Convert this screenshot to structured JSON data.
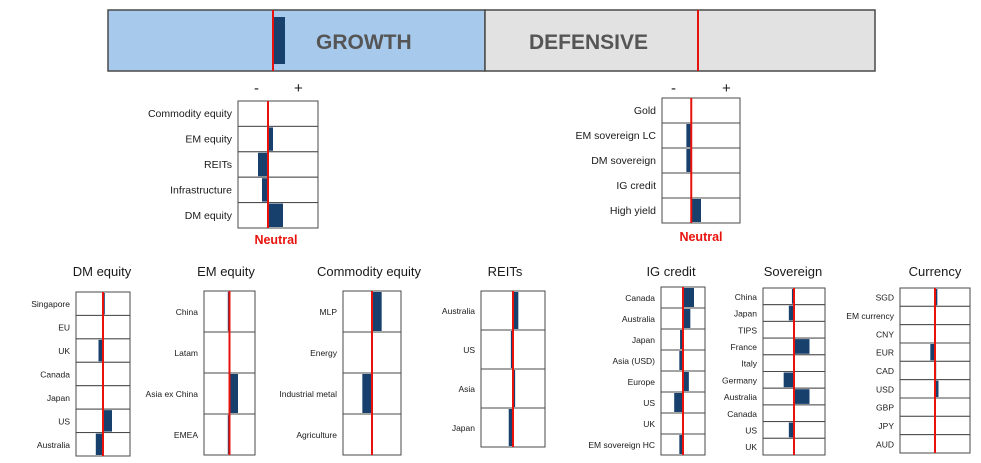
{
  "colors": {
    "growth_fill": "#a7c9ec",
    "defensive_fill": "#e2e2e2",
    "bar": "#17406d",
    "neutral_line": "#e8120c",
    "border": "#4a4a4a"
  },
  "banner": {
    "growth_label": "GROWTH",
    "defensive_label": "DEFENSIVE",
    "growth_tilt": 0.5,
    "defensive_tilt": 0
  },
  "signs": {
    "minus": "-",
    "plus": "+"
  },
  "neutral_label": "Neutral",
  "chart_data": [
    {
      "type": "bar",
      "id": "growth-assets",
      "orientation": "horizontal",
      "title": "",
      "categories": [
        "Commodity equity",
        "EM equity",
        "REITs",
        "Infrastructure",
        "DM equity"
      ],
      "values": [
        0,
        0.25,
        -0.5,
        -0.3,
        0.75
      ],
      "xlim": [
        -1.5,
        2.5
      ]
    },
    {
      "type": "bar",
      "id": "defensive-assets",
      "orientation": "horizontal",
      "title": "",
      "categories": [
        "Gold",
        "EM sovereign LC",
        "DM sovereign",
        "IG credit",
        "High yield"
      ],
      "values": [
        0,
        -0.25,
        -0.25,
        0,
        0.5
      ],
      "xlim": [
        -1.5,
        2.5
      ]
    },
    {
      "type": "bar",
      "id": "dm-equity",
      "orientation": "horizontal",
      "title": "DM equity",
      "categories": [
        "Singapore",
        "EU",
        "UK",
        "Canada",
        "Japan",
        "US",
        "Australia"
      ],
      "values": [
        0.1,
        0,
        -0.25,
        0,
        0,
        0.5,
        -0.4
      ],
      "xlim": [
        -1.5,
        1.5
      ]
    },
    {
      "type": "bar",
      "id": "em-equity",
      "orientation": "horizontal",
      "title": "EM equity",
      "categories": [
        "China",
        "Latam",
        "Asia ex China",
        "EMEA"
      ],
      "values": [
        -0.1,
        0,
        0.5,
        -0.1
      ],
      "xlim": [
        -1.5,
        1.5
      ]
    },
    {
      "type": "bar",
      "id": "commodity-equity",
      "orientation": "horizontal",
      "title": "Commodity equity",
      "categories": [
        "MLP",
        "Energy",
        "Industrial metal",
        "Agriculture"
      ],
      "values": [
        0.5,
        0,
        -0.5,
        0
      ],
      "xlim": [
        -1.5,
        1.5
      ]
    },
    {
      "type": "bar",
      "id": "reits",
      "orientation": "horizontal",
      "title": "REITs",
      "categories": [
        "Australia",
        "US",
        "Asia",
        "Japan"
      ],
      "values": [
        0.25,
        -0.1,
        0.1,
        -0.2
      ],
      "xlim": [
        -1.5,
        1.5
      ]
    },
    {
      "type": "bar",
      "id": "ig-credit",
      "orientation": "horizontal",
      "title": "IG credit",
      "categories": [
        "Canada",
        "Australia",
        "Japan",
        "Asia (USD)",
        "Europe",
        "US",
        "UK",
        "EM sovereign HC"
      ],
      "values": [
        0.75,
        0.5,
        -0.2,
        -0.25,
        0.4,
        -0.6,
        0,
        -0.25
      ],
      "xlim": [
        -1.5,
        1.5
      ]
    },
    {
      "type": "bar",
      "id": "sovereign",
      "orientation": "horizontal",
      "title": "Sovereign",
      "categories": [
        "China",
        "Japan",
        "TIPS",
        "France",
        "Italy",
        "Germany",
        "Australia",
        "Canada",
        "US",
        "UK"
      ],
      "values": [
        -0.1,
        -0.25,
        0,
        0.75,
        0,
        -0.5,
        0.75,
        0,
        -0.25,
        0
      ],
      "xlim": [
        -1.5,
        1.5
      ]
    },
    {
      "type": "bar",
      "id": "currency",
      "orientation": "horizontal",
      "title": "Currency",
      "categories": [
        "SGD",
        "EM currency",
        "CNY",
        "EUR",
        "CAD",
        "USD",
        "GBP",
        "JPY",
        "AUD"
      ],
      "values": [
        0.1,
        0,
        0,
        -0.2,
        0.05,
        0.15,
        0,
        0,
        0
      ],
      "xlim": [
        -1.5,
        1.5
      ]
    }
  ]
}
